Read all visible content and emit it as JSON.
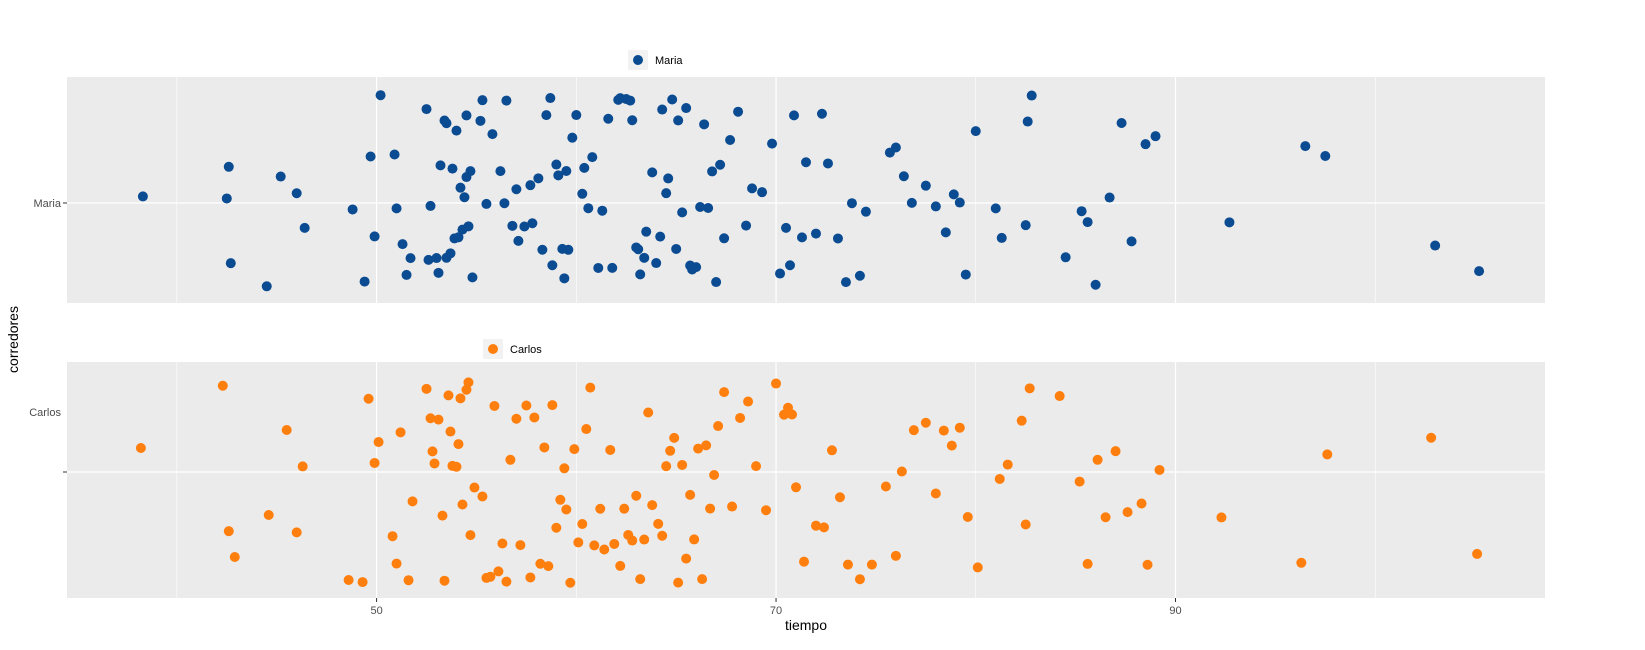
{
  "chart_data": {
    "type": "scatter",
    "jitter": true,
    "grid": true,
    "xlabel": "tiempo",
    "ylabel": "corredores",
    "xlim": [
      34.5,
      108.5
    ],
    "x_ticks": [
      50,
      70,
      90
    ],
    "x_minor_ticks": [
      40,
      60,
      80,
      100
    ],
    "legend_position": "top",
    "panels": [
      {
        "name": "Maria",
        "category": "Maria",
        "color": "#0A4B91",
        "values": [
          38.3,
          42.5,
          42.7,
          42.6,
          44.5,
          45.2,
          46,
          46.4,
          48.8,
          49.4,
          49.7,
          49.9,
          50.2,
          50.9,
          51,
          51.3,
          51.5,
          51.7,
          52.5,
          52.6,
          52.7,
          53,
          53.1,
          53.2,
          53.4,
          53.5,
          53.5,
          53.7,
          53.8,
          53.9,
          54,
          54.1,
          54.2,
          54.3,
          54.4,
          54.5,
          54.5,
          54.6,
          54.7,
          54.8,
          55.2,
          55.3,
          55.5,
          55.8,
          56.2,
          56.4,
          56.5,
          56.8,
          57,
          57.1,
          57.4,
          57.7,
          57.8,
          58.1,
          58.3,
          58.5,
          58.7,
          58.8,
          59,
          59.1,
          59.3,
          59.4,
          59.5,
          59.6,
          59.8,
          60,
          60.3,
          60.4,
          60.6,
          60.8,
          61.1,
          61.3,
          61.6,
          61.8,
          62.1,
          62.2,
          62.5,
          62.7,
          62.8,
          63,
          63.1,
          63.2,
          63.4,
          63.5,
          63.8,
          64,
          64.2,
          64.3,
          64.5,
          64.6,
          64.8,
          65,
          65.1,
          65.3,
          65.5,
          65.7,
          65.8,
          66,
          66.2,
          66.4,
          66.6,
          66.8,
          67,
          67.2,
          67.4,
          67.7,
          68.1,
          68.5,
          68.8,
          69.3,
          69.8,
          70.2,
          70.5,
          70.7,
          70.9,
          71.3,
          71.5,
          72,
          72.3,
          72.6,
          73.1,
          73.5,
          73.8,
          74.2,
          74.5,
          75.7,
          76,
          76.4,
          76.8,
          77.5,
          78,
          78.5,
          78.9,
          79.2,
          79.5,
          80,
          81,
          81.3,
          82.5,
          82.6,
          82.8,
          84.5,
          85.3,
          85.6,
          86,
          86.7,
          87.3,
          87.8,
          88.5,
          89,
          92.7,
          96.5,
          97.5,
          103,
          105.2
        ],
        "legend_label": "Maria"
      },
      {
        "name": "Carlos",
        "category": "Carlos",
        "color": "#FF7F0E",
        "values": [
          38.2,
          42.3,
          42.6,
          42.9,
          44.6,
          45.5,
          46,
          46.3,
          48.6,
          49.3,
          49.6,
          49.9,
          50.1,
          50.8,
          51,
          51.2,
          51.6,
          51.8,
          52.5,
          52.7,
          52.8,
          52.9,
          53.1,
          53.3,
          53.4,
          53.6,
          53.7,
          53.8,
          54,
          54.1,
          54.2,
          54.3,
          54.5,
          54.6,
          54.7,
          54.9,
          55.3,
          55.5,
          55.7,
          55.9,
          56.1,
          56.3,
          56.5,
          56.7,
          57,
          57.2,
          57.5,
          57.7,
          57.9,
          58.2,
          58.4,
          58.6,
          58.8,
          59,
          59.2,
          59.4,
          59.5,
          59.7,
          59.9,
          60.1,
          60.3,
          60.5,
          60.7,
          60.9,
          61.2,
          61.4,
          61.7,
          61.9,
          62.2,
          62.4,
          62.6,
          62.8,
          63,
          63.2,
          63.4,
          63.6,
          63.8,
          64.1,
          64.3,
          64.5,
          64.7,
          64.9,
          65.1,
          65.3,
          65.5,
          65.7,
          65.9,
          66.1,
          66.3,
          66.5,
          66.7,
          66.9,
          67.1,
          67.4,
          67.8,
          68.2,
          68.6,
          69,
          69.5,
          70,
          70.4,
          70.6,
          70.8,
          71,
          71.4,
          72,
          72.4,
          72.8,
          73.2,
          73.6,
          74.2,
          74.8,
          75.5,
          76,
          76.3,
          76.9,
          77.5,
          78,
          78.4,
          78.8,
          79.2,
          79.6,
          80.1,
          81.2,
          81.6,
          82.3,
          82.5,
          82.7,
          84.2,
          85.2,
          85.6,
          86.1,
          86.5,
          87,
          87.6,
          88.3,
          88.6,
          89.2,
          92.3,
          96.3,
          97.6,
          102.8,
          105.1
        ],
        "legend_label": "Carlos"
      }
    ]
  }
}
